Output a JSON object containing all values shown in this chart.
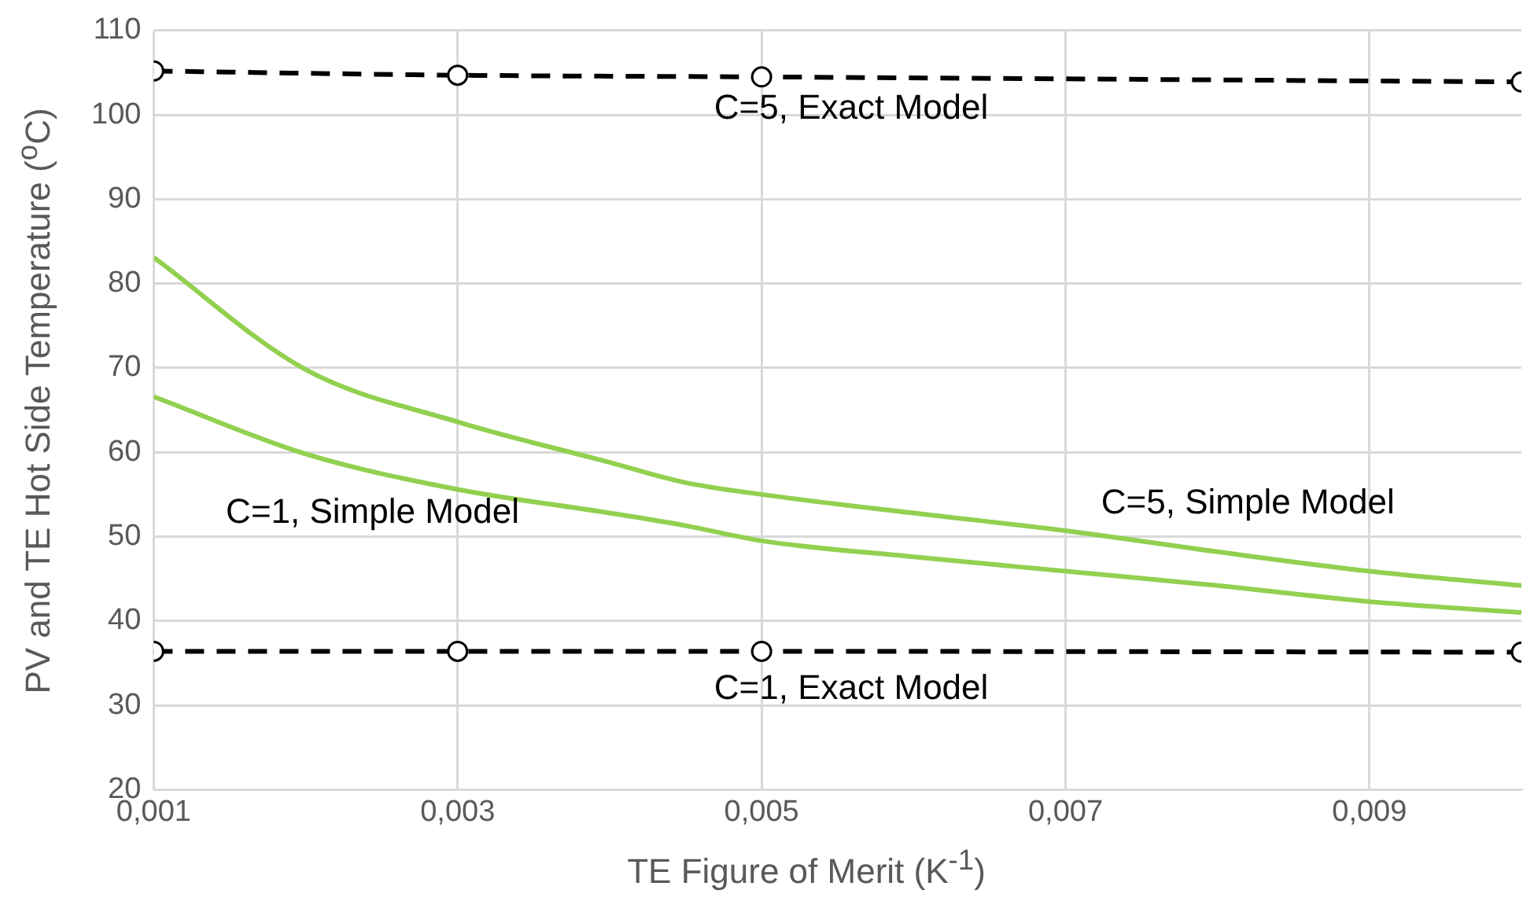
{
  "chart_data": {
    "type": "line",
    "xlabel": "TE Figure of Merit (K$^{-1}$)",
    "ylabel": "PV and TE Hot Side Temperature ($^{o}$C)",
    "xlim": [
      0.001,
      0.01
    ],
    "xticks": [
      {
        "value": 0.001,
        "label": "0,001"
      },
      {
        "value": 0.003,
        "label": "0,003"
      },
      {
        "value": 0.005,
        "label": "0,005"
      },
      {
        "value": 0.007,
        "label": "0,007"
      },
      {
        "value": 0.009,
        "label": "0,009"
      }
    ],
    "ylim": [
      20,
      110
    ],
    "yticks": [
      20,
      30,
      40,
      50,
      60,
      70,
      80,
      90,
      100,
      110
    ],
    "grid": true,
    "legend": false,
    "series": [
      {
        "name": "C=5, Exact Model",
        "color": "#000000",
        "marker": "circle",
        "line_style": "dashed",
        "x": [
          0.001,
          0.003,
          0.005,
          0.01
        ],
        "values": [
          105.2,
          104.7,
          104.5,
          103.9
        ]
      },
      {
        "name": "C=1, Exact Model",
        "color": "#000000",
        "marker": "circle",
        "line_style": "dashed",
        "x": [
          0.001,
          0.003,
          0.005,
          0.01
        ],
        "values": [
          36.4,
          36.4,
          36.4,
          36.3
        ]
      },
      {
        "name": "C=5, Simple Model",
        "color": "#92d050",
        "marker": "none",
        "line_style": "solid",
        "x": [
          0.001,
          0.002,
          0.003,
          0.004,
          0.0045,
          0.005,
          0.006,
          0.007,
          0.008,
          0.009,
          0.01
        ],
        "values": [
          83.1,
          69.8,
          63.6,
          58.8,
          56.4,
          55.0,
          52.8,
          50.7,
          48.2,
          45.9,
          44.2
        ]
      },
      {
        "name": "C=1, Simple Model",
        "color": "#92d050",
        "marker": "none",
        "line_style": "solid",
        "x": [
          0.001,
          0.002,
          0.003,
          0.004,
          0.0045,
          0.005,
          0.006,
          0.007,
          0.008,
          0.009,
          0.01
        ],
        "values": [
          66.6,
          59.8,
          55.6,
          52.8,
          51.3,
          49.5,
          47.6,
          45.9,
          44.2,
          42.3,
          41.0
        ]
      }
    ]
  }
}
